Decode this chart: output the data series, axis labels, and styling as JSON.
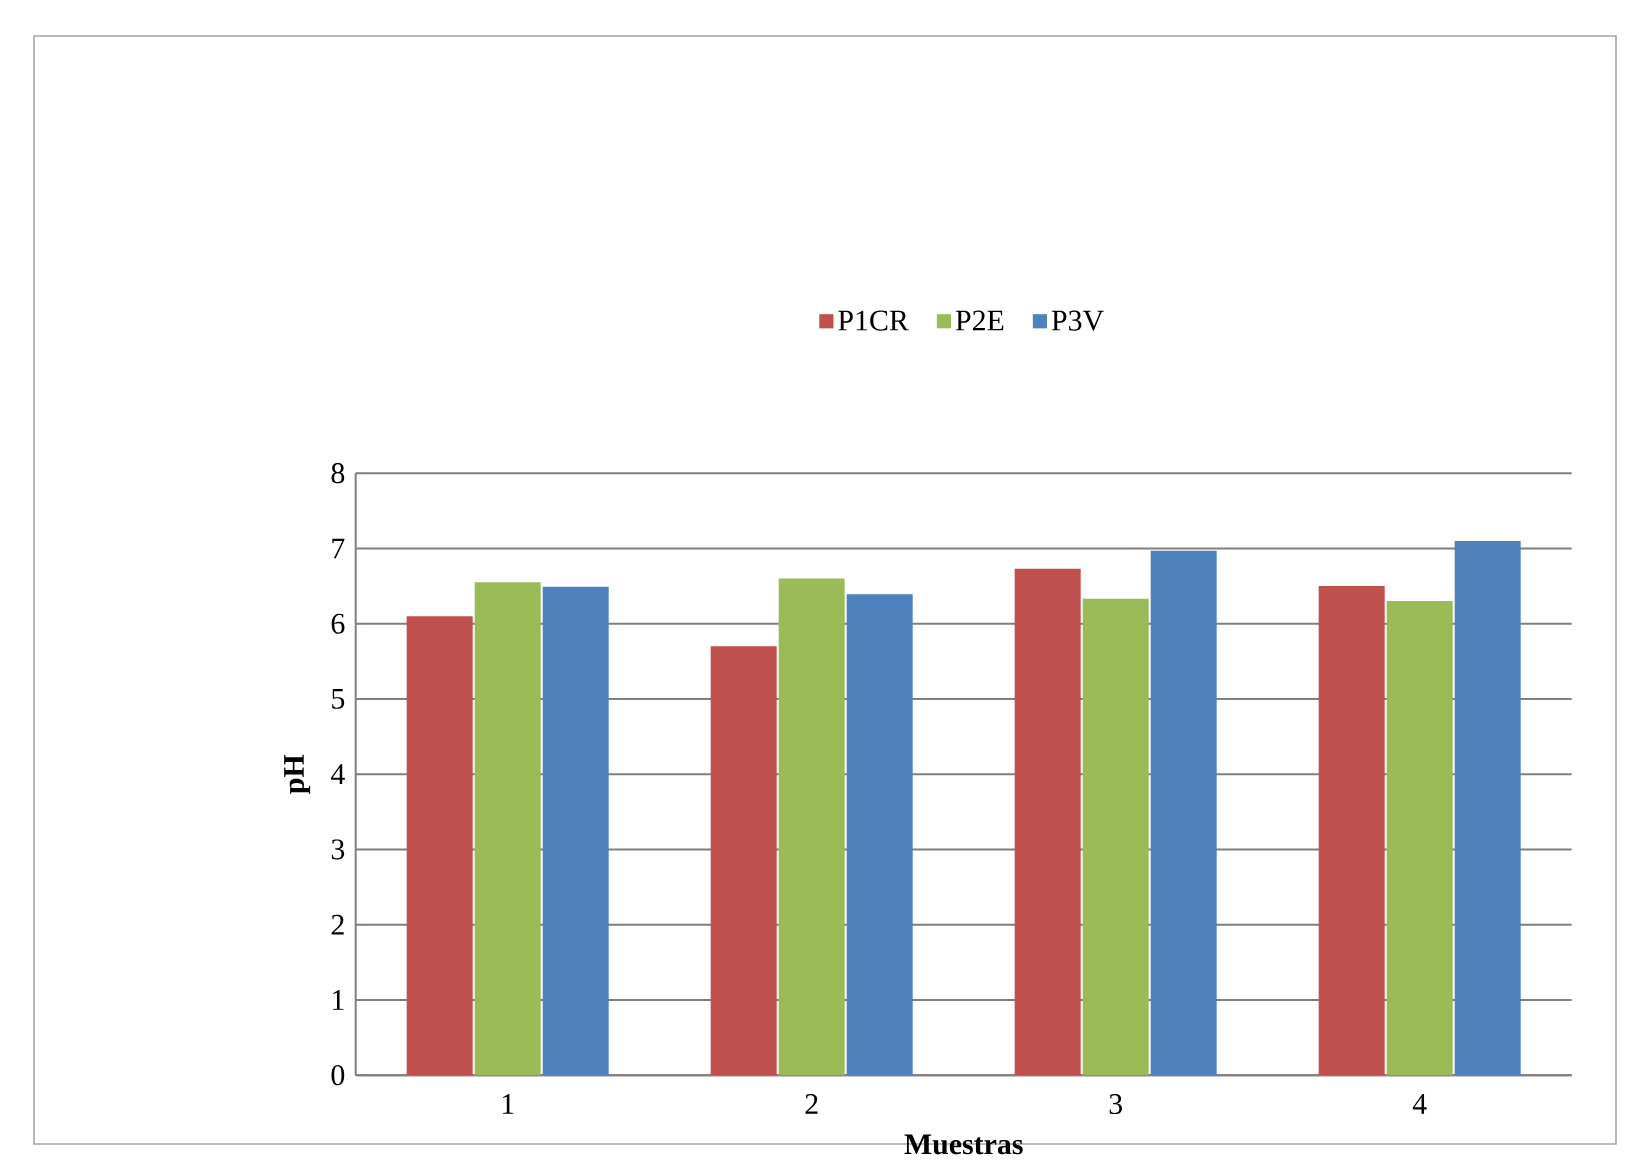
{
  "chart_data": {
    "type": "bar",
    "xlabel": "Muestras",
    "ylabel": "pH",
    "categories": [
      "1",
      "2",
      "3",
      "4"
    ],
    "series": [
      {
        "name": "P1CR",
        "color": "#c0504d",
        "values": [
          6.1,
          5.7,
          6.73,
          6.5
        ]
      },
      {
        "name": "P2E",
        "color": "#9bbb59",
        "values": [
          6.55,
          6.6,
          6.33,
          6.3
        ]
      },
      {
        "name": "P3V",
        "color": "#4f81bd",
        "values": [
          6.49,
          6.39,
          6.97,
          7.1
        ]
      }
    ],
    "ylim": [
      0,
      8
    ],
    "yticks": [
      0,
      1,
      2,
      3,
      4,
      5,
      6,
      7,
      8
    ],
    "grid": "y",
    "legend": "top"
  }
}
